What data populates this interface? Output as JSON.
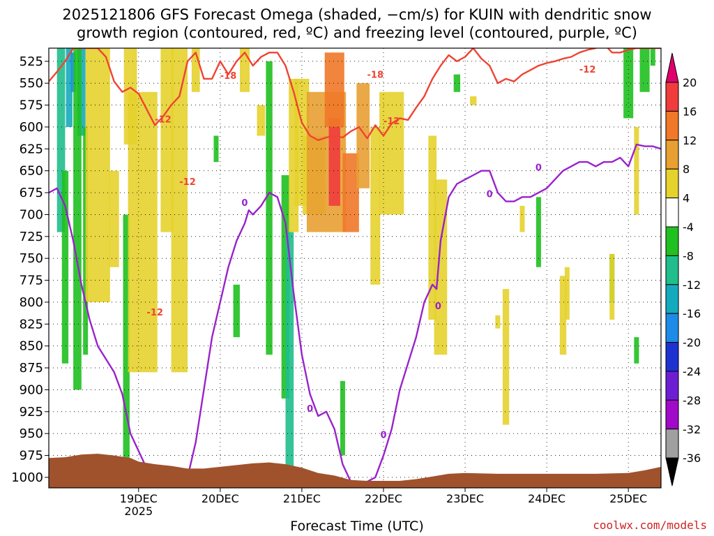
{
  "chart_data": {
    "type": "heatmap",
    "title_line1": "2025121806 GFS Forecast Omega (shaded, −cm/s) for KUIN with dendritic snow",
    "title_line2": "growth region (contoured, red, ºC) and freezing level (contoured, purple, ºC)",
    "xlabel": "Forecast Time (UTC)",
    "credit": "coolwx.com/models",
    "year_label": "2025",
    "x_range_hours": [
      -11,
      64
    ],
    "x_ticks": [
      {
        "hour": 0,
        "label": "19DEC"
      },
      {
        "hour": 10,
        "label": "20DEC"
      },
      {
        "hour": 20,
        "label": "21DEC"
      },
      {
        "hour": 30,
        "label": "22DEC"
      },
      {
        "hour": 40,
        "label": "23DEC"
      },
      {
        "hour": 50,
        "label": "24DEC"
      },
      {
        "hour": 60,
        "label": "25DEC"
      }
    ],
    "y_range_hPa": [
      510,
      1012
    ],
    "y_ticks": [
      525,
      550,
      575,
      600,
      625,
      650,
      675,
      700,
      725,
      750,
      775,
      800,
      825,
      850,
      875,
      900,
      925,
      950,
      975,
      1000
    ],
    "colorbar": {
      "labels": [
        "20",
        "16",
        "12",
        "8",
        "4",
        "-4",
        "-8",
        "-12",
        "-16",
        "-20",
        "-24",
        "-28",
        "-32",
        "-36"
      ],
      "colors": [
        "#e0006e",
        "#f03c3c",
        "#f07828",
        "#e8a032",
        "#e6d22d",
        "#ffffff",
        "#1fc01f",
        "#1fbe8c",
        "#14aabe",
        "#1e8ce6",
        "#1e32d2",
        "#6e1ed2",
        "#a00ac8",
        "#a0a0a0",
        "#000000"
      ]
    },
    "series": [
      {
        "name": "dendritic growth -12C (red)",
        "color": "#ee4433",
        "labels": [
          "-12",
          "-18",
          "-12",
          "-18",
          "-12",
          "-12",
          "-12"
        ],
        "points": [
          [
            -11,
            548
          ],
          [
            -10,
            537
          ],
          [
            -9,
            525
          ],
          [
            -8,
            510
          ],
          [
            -7,
            510
          ],
          [
            -6,
            510
          ],
          [
            -5,
            510
          ],
          [
            -4,
            520
          ],
          [
            -3,
            548
          ],
          [
            -2,
            560
          ],
          [
            -1,
            555
          ],
          [
            0,
            562
          ],
          [
            1,
            580
          ],
          [
            2,
            598
          ],
          [
            3,
            588
          ],
          [
            4,
            575
          ],
          [
            5,
            565
          ],
          [
            5.5,
            545
          ],
          [
            6,
            525
          ],
          [
            7,
            515
          ],
          [
            8,
            545
          ],
          [
            9,
            545
          ],
          [
            10,
            525
          ],
          [
            11,
            540
          ],
          [
            12,
            525
          ],
          [
            13,
            515
          ],
          [
            14,
            530
          ],
          [
            15,
            520
          ],
          [
            16,
            515
          ],
          [
            17,
            515
          ],
          [
            18,
            530
          ],
          [
            19,
            560
          ],
          [
            20,
            595
          ],
          [
            21,
            610
          ],
          [
            22,
            615
          ],
          [
            23,
            612
          ],
          [
            24,
            610
          ],
          [
            25,
            612
          ],
          [
            26,
            605
          ],
          [
            27,
            600
          ],
          [
            28,
            613
          ],
          [
            29,
            598
          ],
          [
            30,
            610
          ],
          [
            31,
            596
          ],
          [
            32,
            590
          ],
          [
            33,
            592
          ],
          [
            34,
            578
          ],
          [
            35,
            565
          ],
          [
            36,
            545
          ],
          [
            37,
            530
          ],
          [
            38,
            518
          ],
          [
            39,
            525
          ],
          [
            40,
            520
          ],
          [
            41,
            510
          ],
          [
            42,
            522
          ],
          [
            43,
            530
          ],
          [
            44,
            550
          ],
          [
            45,
            545
          ],
          [
            46,
            548
          ],
          [
            47,
            540
          ],
          [
            48,
            535
          ],
          [
            49,
            530
          ],
          [
            50,
            527
          ],
          [
            51,
            525
          ],
          [
            52,
            522
          ],
          [
            53,
            520
          ],
          [
            54,
            515
          ],
          [
            55,
            512
          ],
          [
            56,
            510
          ],
          [
            57,
            505
          ],
          [
            58,
            515
          ],
          [
            59,
            515
          ],
          [
            60,
            512
          ],
          [
            61,
            510
          ],
          [
            62,
            510
          ],
          [
            63,
            510
          ],
          [
            64,
            510
          ]
        ]
      },
      {
        "name": "freezing level 0C (purple)",
        "color": "#9922cc",
        "labels": [
          "0",
          "0",
          "0",
          "0",
          "0",
          "0"
        ],
        "points": [
          [
            -11,
            675
          ],
          [
            -10,
            670
          ],
          [
            -9,
            690
          ],
          [
            -8,
            730
          ],
          [
            -7,
            780
          ],
          [
            -6,
            820
          ],
          [
            -5,
            850
          ],
          [
            -3,
            880
          ],
          [
            -2,
            905
          ],
          [
            -1,
            950
          ],
          [
            0,
            970
          ],
          [
            1,
            990
          ],
          [
            2,
            998
          ],
          [
            3,
            1000
          ],
          [
            4,
            1000
          ],
          [
            5,
            1000
          ],
          [
            6,
            1000
          ],
          [
            7,
            960
          ],
          [
            8,
            900
          ],
          [
            9,
            840
          ],
          [
            10,
            800
          ],
          [
            11,
            760
          ],
          [
            12,
            730
          ],
          [
            13,
            710
          ],
          [
            13.5,
            695
          ],
          [
            14,
            700
          ],
          [
            15,
            690
          ],
          [
            16,
            675
          ],
          [
            17,
            680
          ],
          [
            18,
            710
          ],
          [
            19,
            790
          ],
          [
            20,
            860
          ],
          [
            21,
            905
          ],
          [
            22,
            930
          ],
          [
            23,
            925
          ],
          [
            24,
            945
          ],
          [
            25,
            985
          ],
          [
            26,
            1005
          ],
          [
            27,
            1008
          ],
          [
            28,
            1005
          ],
          [
            29,
            1000
          ],
          [
            30,
            975
          ],
          [
            31,
            945
          ],
          [
            32,
            900
          ],
          [
            33,
            870
          ],
          [
            34,
            840
          ],
          [
            35,
            800
          ],
          [
            36,
            780
          ],
          [
            36.5,
            785
          ],
          [
            37,
            730
          ],
          [
            38,
            680
          ],
          [
            39,
            665
          ],
          [
            40,
            660
          ],
          [
            41,
            655
          ],
          [
            42,
            650
          ],
          [
            43,
            650
          ],
          [
            44,
            675
          ],
          [
            45,
            685
          ],
          [
            46,
            685
          ],
          [
            47,
            680
          ],
          [
            48,
            680
          ],
          [
            49,
            675
          ],
          [
            50,
            670
          ],
          [
            51,
            660
          ],
          [
            52,
            650
          ],
          [
            53,
            645
          ],
          [
            54,
            640
          ],
          [
            55,
            640
          ],
          [
            56,
            645
          ],
          [
            57,
            640
          ],
          [
            58,
            640
          ],
          [
            59,
            635
          ],
          [
            60,
            645
          ],
          [
            61,
            620
          ],
          [
            62,
            622
          ],
          [
            63,
            622
          ],
          [
            64,
            625
          ]
        ]
      }
    ]
  }
}
